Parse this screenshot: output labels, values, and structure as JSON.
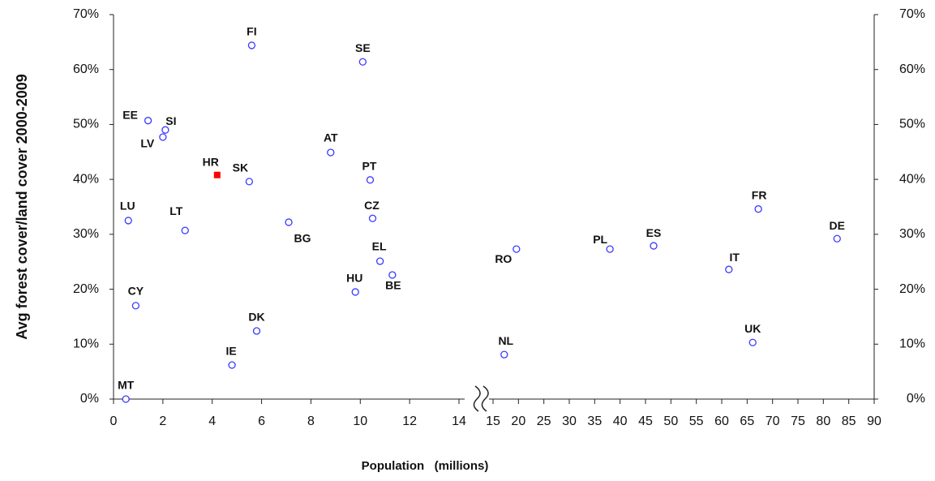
{
  "chart_data": {
    "type": "scatter",
    "x_label": "Population   (millions)",
    "y_label": "Avg forest cover/land cover 2000-2009",
    "x_segments": [
      {
        "xlim": [
          0,
          14
        ],
        "xticks": [
          0,
          2,
          4,
          6,
          8,
          10,
          12,
          14
        ]
      },
      {
        "xlim": [
          15,
          90
        ],
        "xticks": [
          15,
          20,
          25,
          30,
          35,
          40,
          45,
          50,
          55,
          60,
          65,
          70,
          75,
          80,
          85,
          90
        ]
      }
    ],
    "ylim": [
      0,
      70
    ],
    "yticks": [
      {
        "value": 0,
        "label": "0%"
      },
      {
        "value": 10,
        "label": "10%"
      },
      {
        "value": 20,
        "label": "20%"
      },
      {
        "value": 30,
        "label": "30%"
      },
      {
        "value": 40,
        "label": "40%"
      },
      {
        "value": 50,
        "label": "50%"
      },
      {
        "value": 60,
        "label": "60%"
      },
      {
        "value": 70,
        "label": "70%"
      }
    ],
    "y2lim": [
      0,
      70
    ],
    "y2ticks": [
      {
        "value": 0,
        "label": "0%"
      },
      {
        "value": 10,
        "label": "10%"
      },
      {
        "value": 20,
        "label": "20%"
      },
      {
        "value": 30,
        "label": "30%"
      },
      {
        "value": 40,
        "label": "40%"
      },
      {
        "value": 50,
        "label": "50%"
      },
      {
        "value": 60,
        "label": "60%"
      },
      {
        "value": 70,
        "label": "70%"
      }
    ],
    "series": [
      {
        "color": "#3a3aff",
        "marker": "circle",
        "labels": [
          "FI",
          "SE",
          "EE",
          "SI",
          "LV",
          "SK",
          "AT",
          "PT",
          "LU",
          "LT",
          "BG",
          "CZ",
          "EL",
          "BE",
          "HU",
          "CY",
          "DK",
          "IE",
          "MT",
          "RO",
          "NL",
          "PL",
          "ES",
          "FR",
          "IT",
          "UK",
          "DE"
        ],
        "x": [
          5.6,
          10.1,
          1.4,
          2.1,
          2.0,
          5.5,
          8.8,
          10.4,
          0.6,
          2.9,
          7.1,
          10.5,
          10.8,
          11.3,
          9.8,
          0.9,
          5.8,
          4.8,
          0.5,
          19.6,
          17.2,
          38.0,
          46.6,
          67.2,
          61.4,
          66.1,
          82.7
        ],
        "values": [
          64.4,
          61.4,
          50.7,
          49.0,
          47.7,
          39.6,
          44.9,
          39.9,
          32.5,
          30.7,
          32.2,
          32.9,
          25.1,
          22.6,
          19.5,
          17.0,
          12.4,
          6.2,
          0,
          27.3,
          8.1,
          27.3,
          27.9,
          34.6,
          23.6,
          10.3,
          29.2
        ]
      },
      {
        "color": "#ff0000",
        "marker": "square",
        "labels": [
          "HR"
        ],
        "x": [
          4.2
        ],
        "values": [
          40.8
        ]
      }
    ]
  }
}
